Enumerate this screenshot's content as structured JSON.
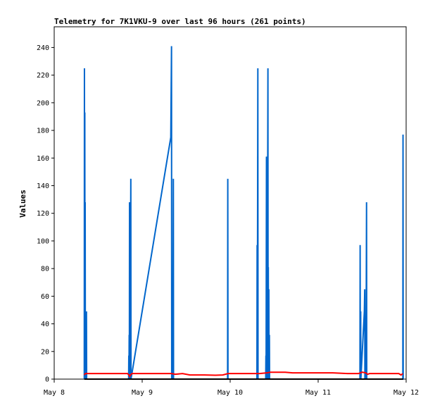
{
  "chart_data": {
    "type": "line",
    "title": "Telemetry for 7K1VKU-9 over last 96 hours (261 points)",
    "xlabel": "",
    "ylabel": "Values",
    "x_tick_labels": [
      "May 8",
      "May 9",
      "May 10",
      "May 11",
      "May 12"
    ],
    "x_range_hours": [
      0,
      96
    ],
    "ylim": [
      0,
      255
    ],
    "y_ticks": [
      0,
      20,
      40,
      60,
      80,
      100,
      120,
      140,
      160,
      180,
      200,
      220,
      240
    ],
    "grid": false,
    "legend": "none",
    "colors": {
      "blue": "#0066cc",
      "red": "#ff0000",
      "black": "#000000"
    },
    "series": [
      {
        "color": "#0066cc",
        "points": [
          [
            8.2,
            0
          ],
          [
            8.25,
            225
          ],
          [
            8.3,
            0
          ],
          [
            8.35,
            193
          ],
          [
            8.4,
            0
          ],
          [
            8.45,
            128
          ],
          [
            8.5,
            0
          ],
          [
            8.55,
            32
          ],
          [
            8.6,
            0
          ],
          [
            8.8,
            49
          ],
          [
            8.85,
            0
          ],
          [
            20.3,
            0
          ],
          [
            20.35,
            17
          ],
          [
            20.4,
            0
          ],
          [
            20.45,
            32
          ],
          [
            20.5,
            0
          ],
          [
            20.55,
            128
          ],
          [
            20.6,
            0
          ],
          [
            20.65,
            128
          ],
          [
            20.7,
            0
          ],
          [
            20.9,
            145
          ],
          [
            20.95,
            0
          ],
          [
            31.8,
            175
          ],
          [
            32.0,
            241
          ],
          [
            32.05,
            0
          ],
          [
            32.3,
            49
          ],
          [
            32.35,
            0
          ],
          [
            32.5,
            145
          ],
          [
            32.55,
            0
          ],
          [
            47.3,
            0
          ],
          [
            47.35,
            145
          ],
          [
            47.4,
            0
          ],
          [
            55.3,
            0
          ],
          [
            55.35,
            97
          ],
          [
            55.4,
            0
          ],
          [
            55.55,
            225
          ],
          [
            55.6,
            0
          ],
          [
            57.7,
            0
          ],
          [
            57.75,
            17
          ],
          [
            57.8,
            0
          ],
          [
            57.9,
            161
          ],
          [
            57.95,
            0
          ],
          [
            58.05,
            97
          ],
          [
            58.1,
            0
          ],
          [
            58.3,
            225
          ],
          [
            58.35,
            0
          ],
          [
            58.4,
            81
          ],
          [
            58.45,
            0
          ],
          [
            58.55,
            65
          ],
          [
            58.6,
            0
          ],
          [
            58.7,
            32
          ],
          [
            58.75,
            0
          ],
          [
            83.4,
            0
          ],
          [
            83.45,
            97
          ],
          [
            83.5,
            0
          ],
          [
            83.6,
            49
          ],
          [
            83.65,
            0
          ],
          [
            84.6,
            49
          ],
          [
            84.7,
            65
          ],
          [
            84.75,
            0
          ],
          [
            85.0,
            32
          ],
          [
            85.05,
            0
          ],
          [
            85.2,
            128
          ],
          [
            85.25,
            0
          ],
          [
            95.1,
            0
          ],
          [
            95.15,
            177
          ],
          [
            95.2,
            0
          ]
        ]
      },
      {
        "color": "#ff0000",
        "points": [
          [
            8.2,
            3
          ],
          [
            8.5,
            4
          ],
          [
            12,
            4
          ],
          [
            20,
            4
          ],
          [
            20.4,
            3
          ],
          [
            20.6,
            2
          ],
          [
            20.8,
            3
          ],
          [
            21.2,
            4
          ],
          [
            25,
            4
          ],
          [
            32,
            4
          ],
          [
            33,
            3.5
          ],
          [
            35,
            4
          ],
          [
            37,
            3
          ],
          [
            41,
            3
          ],
          [
            44,
            2.8
          ],
          [
            46,
            3
          ],
          [
            47.4,
            4
          ],
          [
            52,
            4
          ],
          [
            56,
            4
          ],
          [
            58,
            4.5
          ],
          [
            59,
            5
          ],
          [
            63,
            5
          ],
          [
            65,
            4.5
          ],
          [
            70,
            4.5
          ],
          [
            76,
            4.5
          ],
          [
            80,
            4
          ],
          [
            83,
            4
          ],
          [
            84,
            5
          ],
          [
            85,
            4.5
          ],
          [
            85.5,
            3.5
          ],
          [
            86,
            4
          ],
          [
            90,
            4
          ],
          [
            94,
            4
          ],
          [
            94.6,
            3
          ],
          [
            95.1,
            4
          ]
        ]
      },
      {
        "color": "#000000",
        "points": [
          [
            8.2,
            0
          ],
          [
            95.2,
            0
          ]
        ]
      }
    ]
  }
}
